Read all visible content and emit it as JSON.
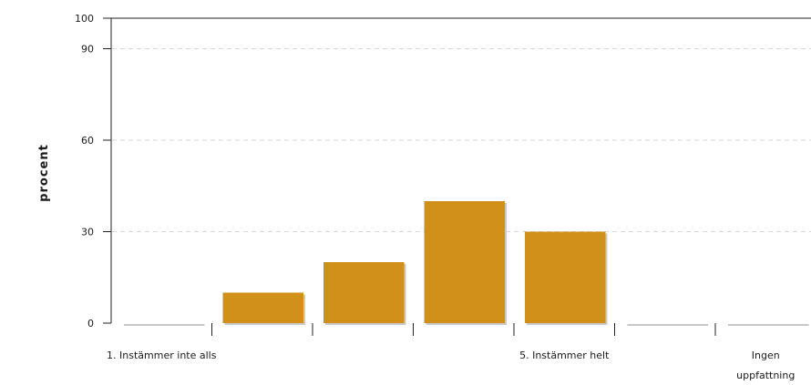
{
  "chart_data": {
    "type": "bar",
    "categories": [
      "1. Instämmer inte alls",
      "",
      "",
      "",
      "5. Instämmer helt",
      "",
      "Ingen uppfattning"
    ],
    "values": [
      0,
      10,
      20,
      40,
      30,
      0,
      0
    ],
    "xlabel": "",
    "ylabel": "procent",
    "ylim": [
      0,
      100
    ],
    "yticks": [
      0,
      30,
      60,
      90,
      100
    ],
    "grid": true,
    "colors": {
      "bar": "#d0901a",
      "bar_shadow": "#c8c8c8",
      "grid": "#d6d6d6",
      "axis": "#222222"
    }
  }
}
